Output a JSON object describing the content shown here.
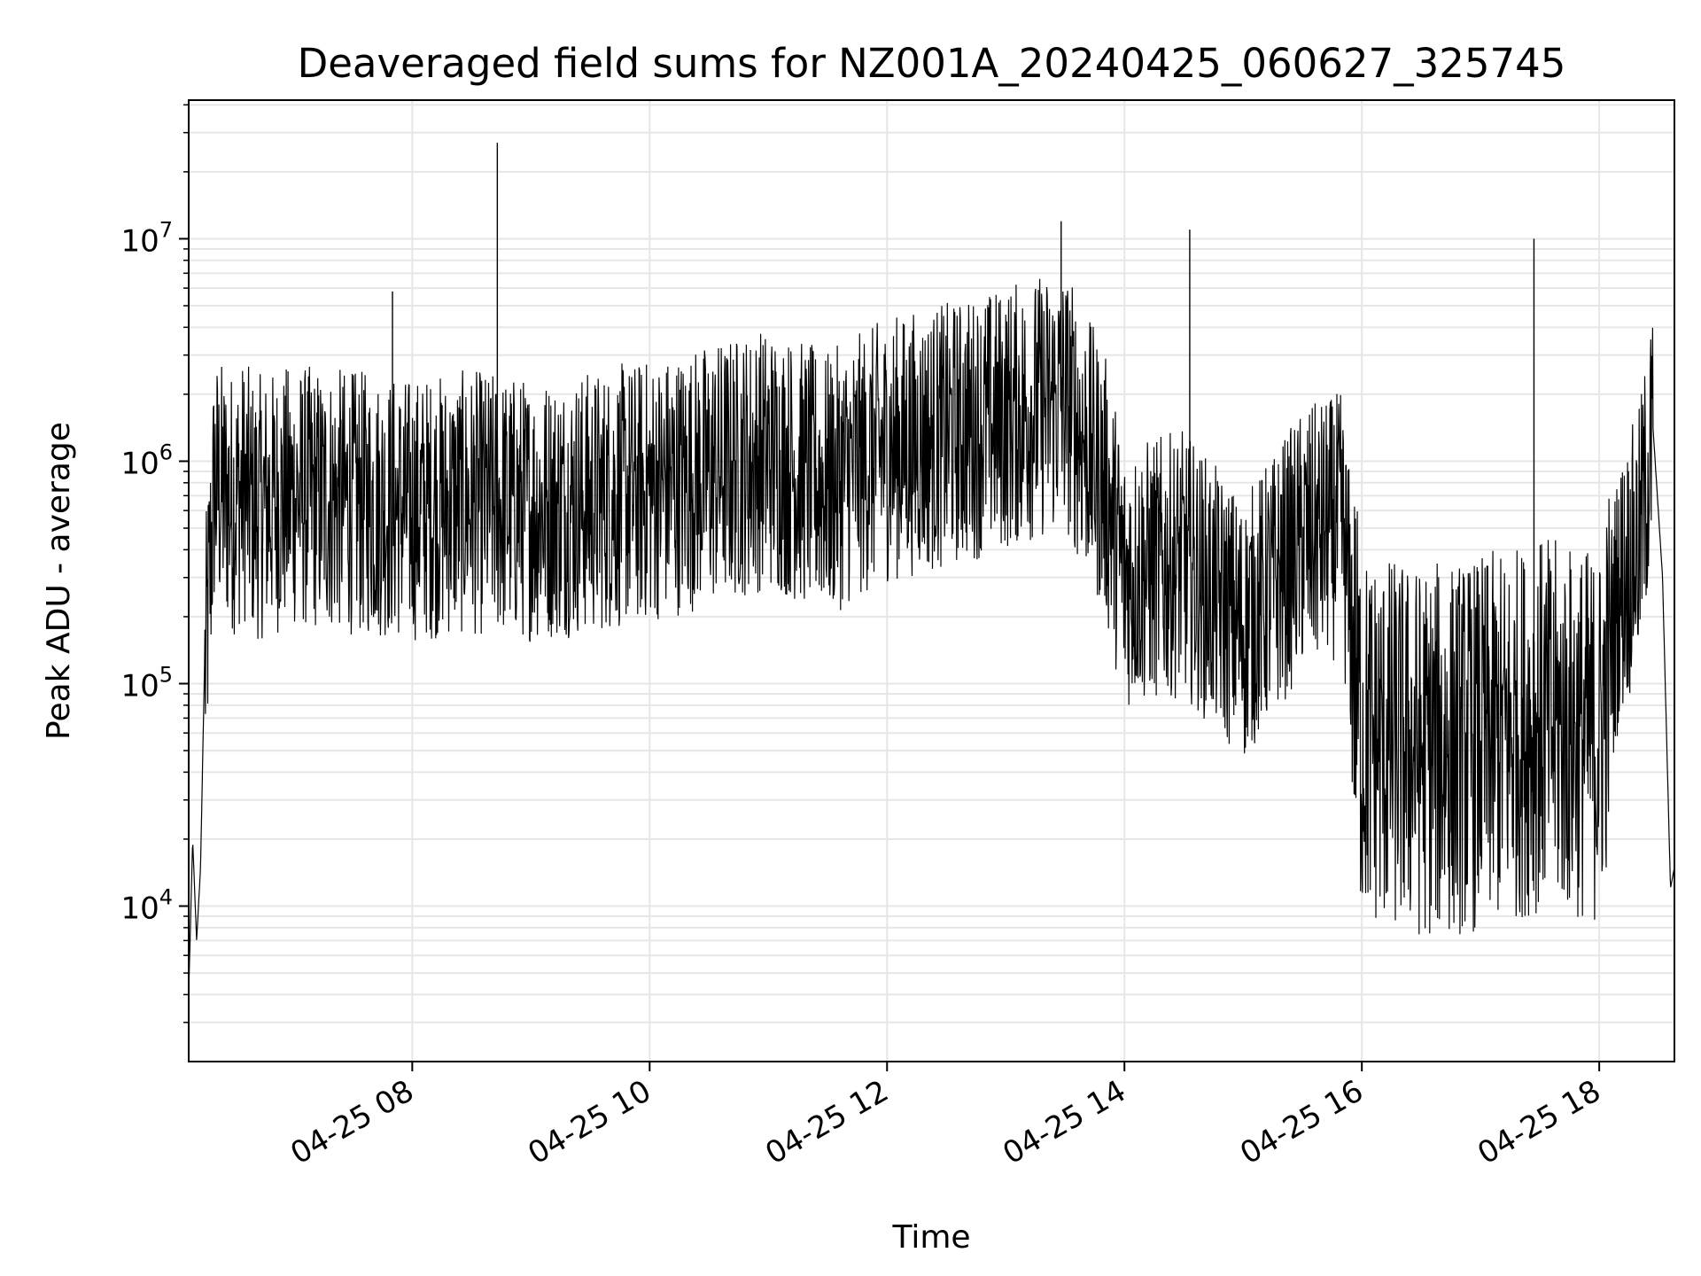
{
  "chart_data": {
    "type": "line",
    "title": "Deaveraged field sums for NZ001A_20240425_060627_325745",
    "xlabel": "Time",
    "ylabel": "Peak ADU - average",
    "yscale": "log",
    "ylim": [
      2000,
      42000000
    ],
    "xlim": [
      "2024-04-25 06:07",
      "2024-04-25 18:38"
    ],
    "grid": true,
    "line_color": "#000000",
    "grid_color": "#e6e6e6",
    "x_ticks": [
      {
        "t": "2024-04-25 08:00",
        "label": "04-25 08"
      },
      {
        "t": "2024-04-25 10:00",
        "label": "04-25 10"
      },
      {
        "t": "2024-04-25 12:00",
        "label": "04-25 12"
      },
      {
        "t": "2024-04-25 14:00",
        "label": "04-25 14"
      },
      {
        "t": "2024-04-25 16:00",
        "label": "04-25 16"
      },
      {
        "t": "2024-04-25 18:00",
        "label": "04-25 18"
      }
    ],
    "y_ticks": [
      {
        "value": 10000,
        "base": "10",
        "exp": "4"
      },
      {
        "value": 100000,
        "base": "10",
        "exp": "5"
      },
      {
        "value": 1000000,
        "base": "10",
        "exp": "6"
      },
      {
        "value": 10000000,
        "base": "10",
        "exp": "7"
      }
    ],
    "series": [
      {
        "x": [
          "2024-04-25 06:07",
          "2024-04-25 06:09",
          "2024-04-25 06:11",
          "2024-04-25 06:13",
          "2024-04-25 06:15",
          "2024-04-25 06:20",
          "2024-04-25 06:25",
          "2024-04-25 06:30",
          "2024-04-25 06:35",
          "2024-04-25 06:40",
          "2024-04-25 07:00",
          "2024-04-25 07:30",
          "2024-04-25 08:00",
          "2024-04-25 08:30",
          "2024-04-25 09:00",
          "2024-04-25 09:30",
          "2024-04-25 10:00",
          "2024-04-25 10:30",
          "2024-04-25 11:00",
          "2024-04-25 11:30",
          "2024-04-25 12:00",
          "2024-04-25 12:30",
          "2024-04-25 13:00",
          "2024-04-25 13:30",
          "2024-04-25 13:50",
          "2024-04-25 14:00",
          "2024-04-25 14:30",
          "2024-04-25 15:00",
          "2024-04-25 15:30",
          "2024-04-25 15:50",
          "2024-04-25 16:00",
          "2024-04-25 16:30",
          "2024-04-25 17:00",
          "2024-04-25 17:30",
          "2024-04-25 18:00",
          "2024-04-25 18:10",
          "2024-04-25 18:20",
          "2024-04-25 18:27",
          "2024-04-25 18:32",
          "2024-04-25 18:36",
          "2024-04-25 18:38"
        ],
        "y": [
          4000,
          20000,
          7000,
          15000,
          120000,
          900000,
          800000,
          750000,
          850000,
          700000,
          800000,
          750000,
          700000,
          750000,
          700000,
          750000,
          850000,
          1000000,
          1200000,
          900000,
          1300000,
          1500000,
          1800000,
          2200000,
          900000,
          350000,
          400000,
          200000,
          500000,
          600000,
          70000,
          60000,
          65000,
          80000,
          70000,
          300000,
          500000,
          1500000,
          300000,
          12000,
          15000
        ]
      }
    ],
    "spikes": [
      {
        "t": "2024-04-25 07:50",
        "value": 5800000
      },
      {
        "t": "2024-04-25 08:43",
        "value": 27000000
      },
      {
        "t": "2024-04-25 13:28",
        "value": 12000000
      },
      {
        "t": "2024-04-25 14:33",
        "value": 11000000
      },
      {
        "t": "2024-04-25 17:27",
        "value": 10000000
      }
    ]
  }
}
